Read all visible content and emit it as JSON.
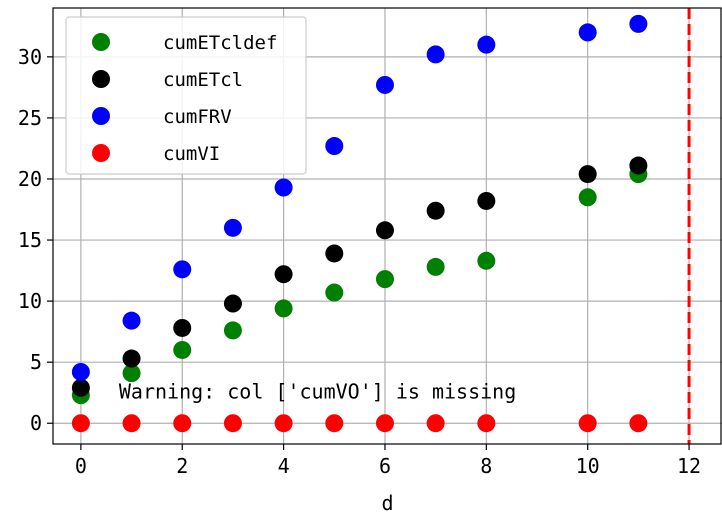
{
  "chart_data": {
    "type": "scatter",
    "title": "",
    "xlabel": "d",
    "ylabel": "",
    "xlim": [
      -0.55,
      12.65
    ],
    "ylim": [
      -1.7,
      34.0
    ],
    "xticks": [
      0,
      2,
      4,
      6,
      8,
      10,
      12
    ],
    "yticks": [
      0,
      5,
      10,
      15,
      20,
      25,
      30
    ],
    "grid": true,
    "legend_position": "top-left",
    "vline": {
      "x": 12,
      "color": "#ff0000",
      "style": "dashed"
    },
    "annotation": {
      "text": "Warning: col ['cumVO'] is missing",
      "x": 0.75,
      "y": 2.6
    },
    "series": [
      {
        "name": "cumETcldef",
        "color": "#008000",
        "x": [
          0,
          1,
          2,
          3,
          4,
          5,
          6,
          7,
          8,
          10,
          11
        ],
        "y": [
          2.3,
          4.1,
          6.0,
          7.6,
          9.4,
          10.7,
          11.8,
          12.8,
          13.3,
          18.5,
          20.4
        ]
      },
      {
        "name": "cumETcl",
        "color": "#000000",
        "x": [
          0,
          1,
          2,
          3,
          4,
          5,
          6,
          7,
          8,
          10,
          11
        ],
        "y": [
          2.9,
          5.3,
          7.8,
          9.8,
          12.2,
          13.9,
          15.8,
          17.4,
          18.2,
          20.4,
          21.1
        ]
      },
      {
        "name": "cumFRV",
        "color": "#0000ff",
        "x": [
          0,
          1,
          2,
          3,
          4,
          5,
          6,
          7,
          8,
          10,
          11
        ],
        "y": [
          4.2,
          8.4,
          12.6,
          16.0,
          19.3,
          22.7,
          27.7,
          30.2,
          31.0,
          32.0,
          32.7
        ]
      },
      {
        "name": "cumVI",
        "color": "#ff0000",
        "x": [
          0,
          1,
          2,
          3,
          4,
          5,
          6,
          7,
          8,
          10,
          11
        ],
        "y": [
          0,
          0,
          0,
          0,
          0,
          0,
          0,
          0,
          0,
          0,
          0
        ]
      }
    ]
  }
}
